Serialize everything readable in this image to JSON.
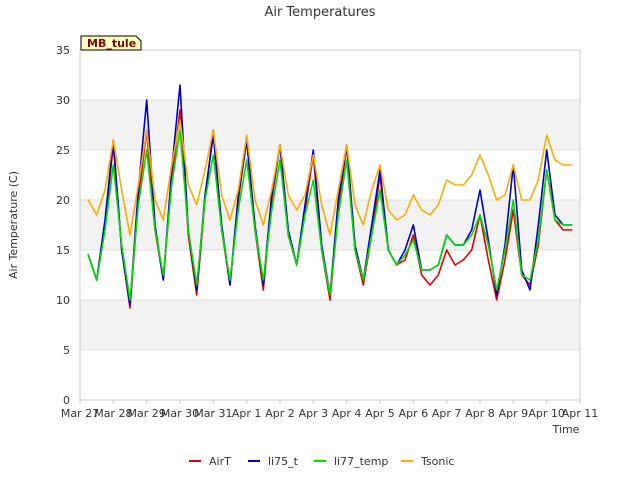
{
  "chart_data": {
    "type": "line",
    "title": "Air Temperatures",
    "xlabel": "Time",
    "ylabel": "Air Temperature (C)",
    "site_label": "MB_tule",
    "ylim": [
      0,
      35
    ],
    "yticks": [
      0,
      5,
      10,
      15,
      20,
      25,
      30,
      35
    ],
    "xlim": [
      "2024-03-27",
      "2024-04-11"
    ],
    "xticks": [
      "Mar 27",
      "Mar 28",
      "Mar 29",
      "Mar 30",
      "Mar 31",
      "Apr 1",
      "Apr 2",
      "Apr 3",
      "Apr 4",
      "Apr 5",
      "Apr 6",
      "Apr 7",
      "Apr 8",
      "Apr 9",
      "Apr 10",
      "Apr 11"
    ],
    "grid": true,
    "legend_position": "bottom",
    "series": [
      {
        "name": "AirT",
        "color": "#dd0000",
        "x": [
          "2024-03-27 06:00",
          "2024-03-27 12:00",
          "2024-03-27 18:00",
          "2024-03-28 00:00",
          "2024-03-28 06:00",
          "2024-03-28 12:00",
          "2024-03-28 18:00",
          "2024-03-29 00:00",
          "2024-03-29 06:00",
          "2024-03-29 12:00",
          "2024-03-29 18:00",
          "2024-03-30 00:00",
          "2024-03-30 06:00",
          "2024-03-30 12:00",
          "2024-03-30 18:00",
          "2024-03-31 00:00",
          "2024-03-31 06:00",
          "2024-03-31 12:00",
          "2024-03-31 18:00",
          "2024-04-01 00:00",
          "2024-04-01 06:00",
          "2024-04-01 12:00",
          "2024-04-01 18:00",
          "2024-04-02 00:00",
          "2024-04-02 06:00",
          "2024-04-02 12:00",
          "2024-04-02 18:00",
          "2024-04-03 00:00",
          "2024-04-03 06:00",
          "2024-04-03 12:00",
          "2024-04-03 18:00",
          "2024-04-04 00:00",
          "2024-04-04 06:00",
          "2024-04-04 12:00",
          "2024-04-04 18:00",
          "2024-04-05 00:00",
          "2024-04-05 06:00",
          "2024-04-05 12:00",
          "2024-04-05 18:00",
          "2024-04-06 00:00",
          "2024-04-06 06:00",
          "2024-04-06 12:00",
          "2024-04-06 18:00",
          "2024-04-07 00:00",
          "2024-04-07 06:00",
          "2024-04-07 12:00",
          "2024-04-07 18:00",
          "2024-04-08 00:00",
          "2024-04-08 06:00",
          "2024-04-08 12:00",
          "2024-04-08 18:00",
          "2024-04-09 00:00",
          "2024-04-09 06:00",
          "2024-04-09 12:00",
          "2024-04-09 18:00",
          "2024-04-10 00:00",
          "2024-04-10 06:00",
          "2024-04-10 12:00",
          "2024-04-10 18:00"
        ],
        "values": [
          14.5,
          12.0,
          17.5,
          25.5,
          15.0,
          9.2,
          20.0,
          27.0,
          17.0,
          12.0,
          22.0,
          29.0,
          16.5,
          10.5,
          20.0,
          27.0,
          17.0,
          11.5,
          20.0,
          26.0,
          17.0,
          11.0,
          20.0,
          25.5,
          16.5,
          13.5,
          19.0,
          24.5,
          15.0,
          10.0,
          19.0,
          25.5,
          15.0,
          11.5,
          16.5,
          22.5,
          15.0,
          13.5,
          14.0,
          16.5,
          12.5,
          11.5,
          12.5,
          15.0,
          13.5,
          14.0,
          15.0,
          18.5,
          14.0,
          10.0,
          14.0,
          19.0,
          12.5,
          11.5,
          15.5,
          23.0,
          18.0,
          17.0,
          17.0
        ]
      },
      {
        "name": "li75_t",
        "color": "#0000cc",
        "x": [
          "2024-03-27 06:00",
          "2024-03-27 12:00",
          "2024-03-27 18:00",
          "2024-03-28 00:00",
          "2024-03-28 06:00",
          "2024-03-28 12:00",
          "2024-03-28 18:00",
          "2024-03-29 00:00",
          "2024-03-29 06:00",
          "2024-03-29 12:00",
          "2024-03-29 18:00",
          "2024-03-30 00:00",
          "2024-03-30 06:00",
          "2024-03-30 12:00",
          "2024-03-30 18:00",
          "2024-03-31 00:00",
          "2024-03-31 06:00",
          "2024-03-31 12:00",
          "2024-03-31 18:00",
          "2024-04-01 00:00",
          "2024-04-01 06:00",
          "2024-04-01 12:00",
          "2024-04-01 18:00",
          "2024-04-02 00:00",
          "2024-04-02 06:00",
          "2024-04-02 12:00",
          "2024-04-02 18:00",
          "2024-04-03 00:00",
          "2024-04-03 06:00",
          "2024-04-03 12:00",
          "2024-04-03 18:00",
          "2024-04-04 00:00",
          "2024-04-04 06:00",
          "2024-04-04 12:00",
          "2024-04-04 18:00",
          "2024-04-05 00:00",
          "2024-04-05 06:00",
          "2024-04-05 12:00",
          "2024-04-05 18:00",
          "2024-04-06 00:00",
          "2024-04-06 06:00",
          "2024-04-06 12:00",
          "2024-04-06 18:00",
          "2024-04-07 00:00",
          "2024-04-07 06:00",
          "2024-04-07 12:00",
          "2024-04-07 18:00",
          "2024-04-08 00:00",
          "2024-04-08 06:00",
          "2024-04-08 12:00",
          "2024-04-08 18:00",
          "2024-04-09 00:00",
          "2024-04-09 06:00",
          "2024-04-09 12:00",
          "2024-04-09 18:00",
          "2024-04-10 00:00",
          "2024-04-10 06:00",
          "2024-04-10 12:00",
          "2024-04-10 18:00"
        ],
        "values": [
          14.5,
          12.0,
          18.0,
          26.0,
          15.0,
          9.5,
          21.0,
          30.0,
          17.5,
          12.0,
          23.0,
          31.5,
          17.0,
          11.0,
          20.5,
          26.5,
          17.5,
          11.5,
          20.5,
          26.0,
          17.5,
          11.5,
          20.5,
          25.5,
          17.0,
          13.5,
          19.5,
          25.0,
          15.5,
          10.5,
          20.0,
          25.5,
          15.5,
          12.0,
          17.5,
          23.0,
          15.0,
          13.5,
          15.0,
          17.5,
          13.0,
          13.0,
          13.5,
          16.5,
          15.5,
          15.5,
          17.0,
          21.0,
          16.0,
          10.5,
          15.5,
          23.5,
          13.0,
          11.0,
          17.5,
          25.0,
          18.5,
          17.5,
          17.5
        ]
      },
      {
        "name": "li77_temp",
        "color": "#00dd00",
        "x": [
          "2024-03-27 06:00",
          "2024-03-27 12:00",
          "2024-03-27 18:00",
          "2024-03-28 00:00",
          "2024-03-28 06:00",
          "2024-03-28 12:00",
          "2024-03-28 18:00",
          "2024-03-29 00:00",
          "2024-03-29 06:00",
          "2024-03-29 12:00",
          "2024-03-29 18:00",
          "2024-03-30 00:00",
          "2024-03-30 06:00",
          "2024-03-30 12:00",
          "2024-03-30 18:00",
          "2024-03-31 00:00",
          "2024-03-31 06:00",
          "2024-03-31 12:00",
          "2024-03-31 18:00",
          "2024-04-01 00:00",
          "2024-04-01 06:00",
          "2024-04-01 12:00",
          "2024-04-01 18:00",
          "2024-04-02 00:00",
          "2024-04-02 06:00",
          "2024-04-02 12:00",
          "2024-04-02 18:00",
          "2024-04-03 00:00",
          "2024-04-03 06:00",
          "2024-04-03 12:00",
          "2024-04-03 18:00",
          "2024-04-04 00:00",
          "2024-04-04 06:00",
          "2024-04-04 12:00",
          "2024-04-04 18:00",
          "2024-04-05 00:00",
          "2024-04-05 06:00",
          "2024-04-05 12:00",
          "2024-04-05 18:00",
          "2024-04-06 00:00",
          "2024-04-06 06:00",
          "2024-04-06 12:00",
          "2024-04-06 18:00",
          "2024-04-07 00:00",
          "2024-04-07 06:00",
          "2024-04-07 12:00",
          "2024-04-07 18:00",
          "2024-04-08 00:00",
          "2024-04-08 06:00",
          "2024-04-08 12:00",
          "2024-04-08 18:00",
          "2024-04-09 00:00",
          "2024-04-09 06:00",
          "2024-04-09 12:00",
          "2024-04-09 18:00",
          "2024-04-10 00:00",
          "2024-04-10 06:00",
          "2024-04-10 12:00",
          "2024-04-10 18:00"
        ],
        "values": [
          14.5,
          12.0,
          17.0,
          23.5,
          15.5,
          10.0,
          19.5,
          25.0,
          17.0,
          12.5,
          21.5,
          27.0,
          17.0,
          11.5,
          20.0,
          24.5,
          17.0,
          12.0,
          19.0,
          24.0,
          17.0,
          12.0,
          19.0,
          24.0,
          16.5,
          13.5,
          18.5,
          22.0,
          15.0,
          10.5,
          18.5,
          24.0,
          15.0,
          12.0,
          16.5,
          21.0,
          15.0,
          13.5,
          14.5,
          16.0,
          13.0,
          13.0,
          13.5,
          16.5,
          15.5,
          15.5,
          16.5,
          18.5,
          15.5,
          11.0,
          15.0,
          20.0,
          12.5,
          12.0,
          16.0,
          23.0,
          18.0,
          17.5,
          17.5
        ]
      },
      {
        "name": "Tsonic",
        "color": "#ffaa00",
        "x": [
          "2024-03-27 06:00",
          "2024-03-27 12:00",
          "2024-03-27 18:00",
          "2024-03-28 00:00",
          "2024-03-28 06:00",
          "2024-03-28 12:00",
          "2024-03-28 18:00",
          "2024-03-29 00:00",
          "2024-03-29 06:00",
          "2024-03-29 12:00",
          "2024-03-29 18:00",
          "2024-03-30 00:00",
          "2024-03-30 06:00",
          "2024-03-30 12:00",
          "2024-03-30 18:00",
          "2024-03-31 00:00",
          "2024-03-31 06:00",
          "2024-03-31 12:00",
          "2024-03-31 18:00",
          "2024-04-01 00:00",
          "2024-04-01 06:00",
          "2024-04-01 12:00",
          "2024-04-01 18:00",
          "2024-04-02 00:00",
          "2024-04-02 06:00",
          "2024-04-02 12:00",
          "2024-04-02 18:00",
          "2024-04-03 00:00",
          "2024-04-03 06:00",
          "2024-04-03 12:00",
          "2024-04-03 18:00",
          "2024-04-04 00:00",
          "2024-04-04 06:00",
          "2024-04-04 12:00",
          "2024-04-04 18:00",
          "2024-04-05 00:00",
          "2024-04-05 06:00",
          "2024-04-05 12:00",
          "2024-04-05 18:00",
          "2024-04-06 00:00",
          "2024-04-06 06:00",
          "2024-04-06 12:00",
          "2024-04-06 18:00",
          "2024-04-07 00:00",
          "2024-04-07 06:00",
          "2024-04-07 12:00",
          "2024-04-07 18:00",
          "2024-04-08 00:00",
          "2024-04-08 06:00",
          "2024-04-08 12:00",
          "2024-04-08 18:00",
          "2024-04-09 00:00",
          "2024-04-09 06:00",
          "2024-04-09 12:00",
          "2024-04-09 18:00",
          "2024-04-10 00:00",
          "2024-04-10 06:00",
          "2024-04-10 12:00",
          "2024-04-10 18:00"
        ],
        "values": [
          20.0,
          18.5,
          21.0,
          26.0,
          21.0,
          16.5,
          21.5,
          27.0,
          20.0,
          18.0,
          23.5,
          28.0,
          21.5,
          19.5,
          23.0,
          27.0,
          20.5,
          18.0,
          21.0,
          26.5,
          20.0,
          17.5,
          21.0,
          25.5,
          20.5,
          19.0,
          20.5,
          24.5,
          19.5,
          16.5,
          21.0,
          25.5,
          19.5,
          17.5,
          21.0,
          23.5,
          19.0,
          18.0,
          18.5,
          20.5,
          19.0,
          18.5,
          19.5,
          22.0,
          21.5,
          21.5,
          22.5,
          24.5,
          22.5,
          20.0,
          20.5,
          23.5,
          20.0,
          20.0,
          22.0,
          26.5,
          24.0,
          23.5,
          23.5
        ]
      }
    ]
  }
}
